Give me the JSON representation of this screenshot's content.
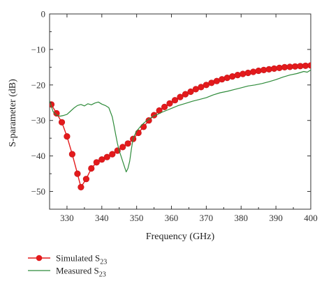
{
  "chart_data": {
    "type": "line",
    "title": "",
    "xlabel": "Frequency (GHz)",
    "ylabel": "S-parameter (dB)",
    "xlim": [
      325,
      400
    ],
    "ylim": [
      -55,
      0
    ],
    "xticks": [
      330,
      340,
      350,
      360,
      370,
      380,
      390,
      400
    ],
    "yticks": [
      0,
      -10,
      -20,
      -30,
      -40,
      -50
    ],
    "grid": false,
    "legend_position": "bottom-left, below plot",
    "series": [
      {
        "name": "Simulated S23",
        "name_main": "Simulated S",
        "name_sub": "23",
        "color": "#e31a1c",
        "style": "line-with-circle-markers",
        "x": [
          325.5,
          327,
          328.5,
          330,
          331.5,
          333,
          334,
          335.5,
          337,
          338.5,
          340,
          341.5,
          343,
          344.5,
          346,
          347.5,
          349,
          350.5,
          352,
          353.5,
          355,
          356.5,
          358,
          359.5,
          361,
          362.5,
          364,
          365.5,
          367,
          368.5,
          370,
          371.5,
          373,
          374.5,
          376,
          377.5,
          379,
          380.5,
          382,
          383.5,
          385,
          386.5,
          388,
          389.5,
          391,
          392.5,
          394,
          395.5,
          397,
          398.5,
          400
        ],
        "y": [
          -25.5,
          -28,
          -30.5,
          -34.5,
          -39.5,
          -45,
          -48.8,
          -46.5,
          -43.5,
          -41.8,
          -41,
          -40.3,
          -39.5,
          -38.5,
          -37.5,
          -36.5,
          -35.2,
          -33.5,
          -31.8,
          -30,
          -28.5,
          -27.2,
          -26.2,
          -25.2,
          -24.3,
          -23.4,
          -22.6,
          -21.9,
          -21.2,
          -20.6,
          -20,
          -19.4,
          -18.9,
          -18.4,
          -18,
          -17.6,
          -17.2,
          -16.9,
          -16.6,
          -16.3,
          -16,
          -15.8,
          -15.6,
          -15.4,
          -15.2,
          -15,
          -14.9,
          -14.8,
          -14.7,
          -14.6,
          -14.5
        ]
      },
      {
        "name": "Measured S23",
        "name_main": "Measured S",
        "name_sub": "23",
        "color": "#2e8b3a",
        "style": "line",
        "x": [
          325,
          326,
          327,
          328,
          329,
          330,
          331,
          332,
          333,
          334,
          335,
          336,
          337,
          338,
          339,
          340,
          341,
          342,
          343,
          343.5,
          344,
          344.5,
          345,
          345.5,
          346,
          346.5,
          347,
          347.5,
          348,
          348.5,
          349,
          350,
          351,
          352,
          353,
          354,
          355,
          356,
          357,
          358,
          359,
          360,
          362,
          364,
          366,
          368,
          370,
          372,
          374,
          376,
          378,
          380,
          382,
          384,
          386,
          388,
          390,
          392,
          394,
          396,
          398,
          399,
          400
        ],
        "y": [
          -24.5,
          -27.5,
          -28.5,
          -28.8,
          -28.6,
          -28.3,
          -27.4,
          -26.5,
          -25.8,
          -25.5,
          -25.9,
          -25.3,
          -25.6,
          -25.1,
          -24.8,
          -25.4,
          -25.8,
          -26.4,
          -29,
          -31.5,
          -34,
          -36.5,
          -38.5,
          -40,
          -41.5,
          -43,
          -44.5,
          -43.5,
          -41.5,
          -38,
          -35,
          -33,
          -31.8,
          -30.8,
          -30,
          -29.3,
          -28.7,
          -28.3,
          -27.8,
          -27.4,
          -27,
          -26.6,
          -25.8,
          -25.2,
          -24.6,
          -24.1,
          -23.6,
          -22.8,
          -22.2,
          -21.8,
          -21.3,
          -20.8,
          -20.3,
          -20,
          -19.6,
          -19.1,
          -18.5,
          -17.8,
          -17.2,
          -16.8,
          -16.2,
          -16.4,
          -15.8
        ]
      }
    ]
  }
}
